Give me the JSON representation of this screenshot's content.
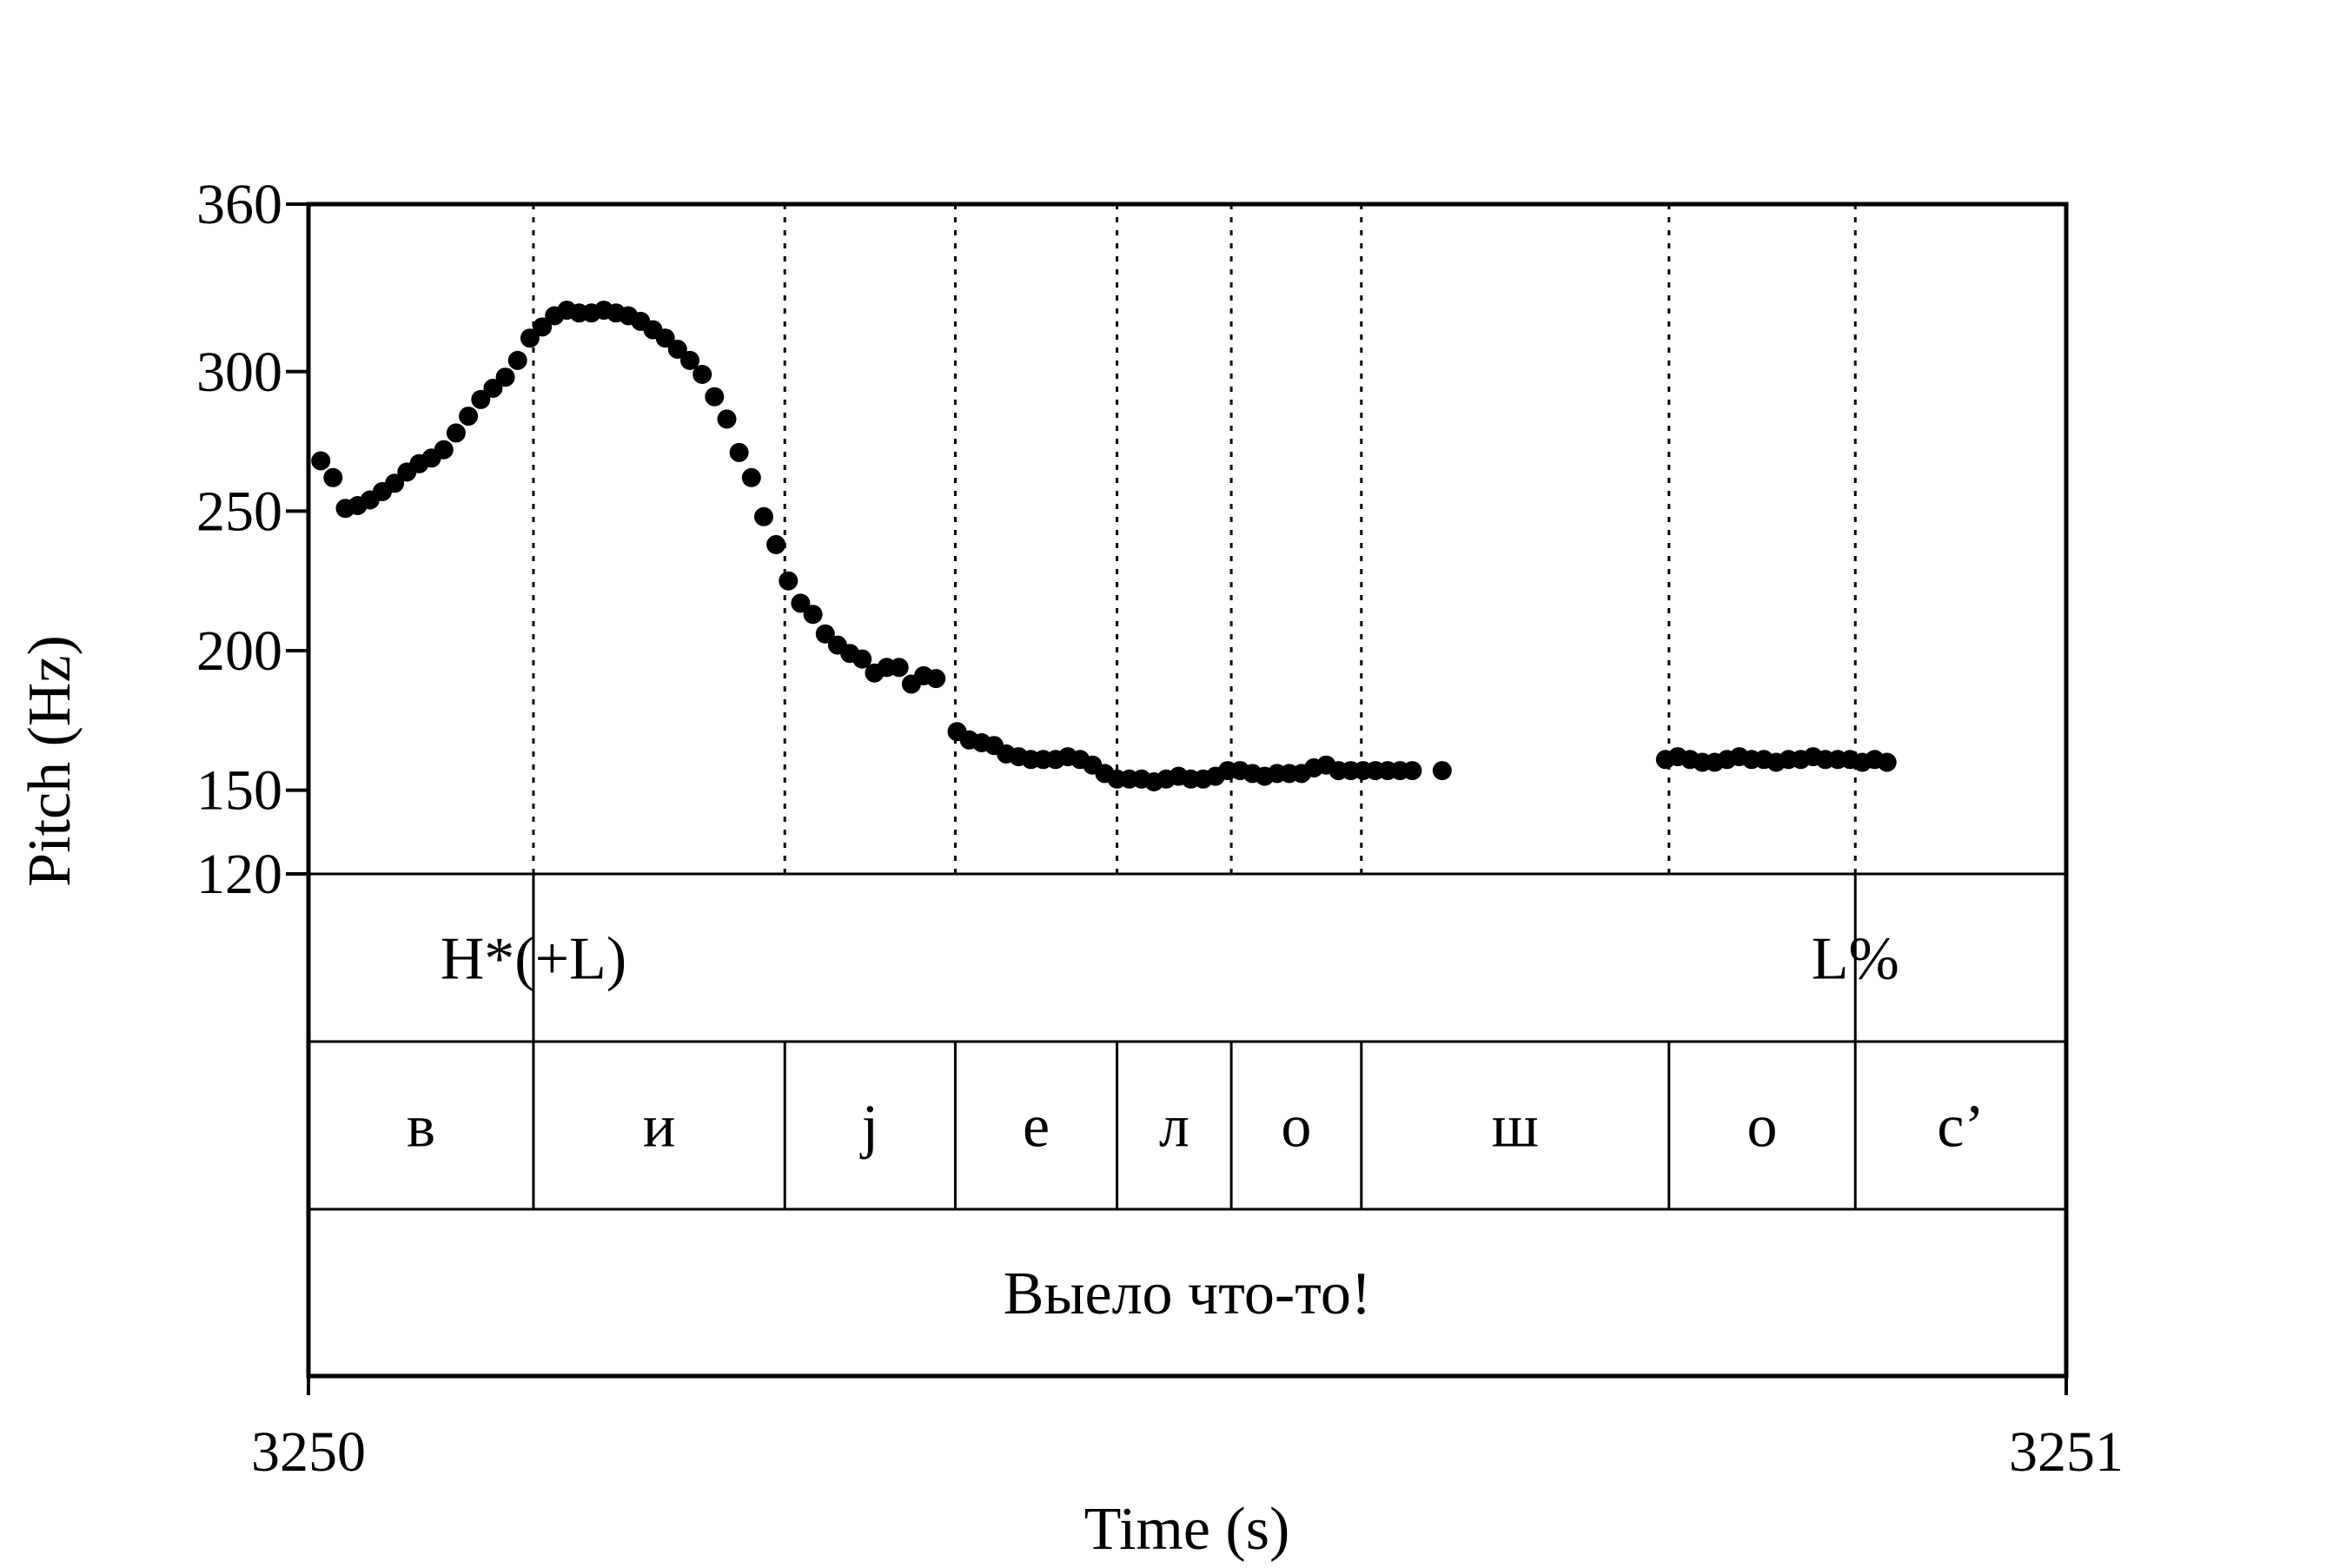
{
  "chart_data": {
    "type": "scatter",
    "xlabel": "Time (s)",
    "ylabel": "Pitch (Hz)",
    "xlim": [
      3250,
      3251
    ],
    "ylim": [
      120,
      360
    ],
    "x_ticks": [
      "3250",
      "3251"
    ],
    "y_ticks": [
      "120",
      "150",
      "200",
      "250",
      "300",
      "360"
    ],
    "grid": false,
    "series": [
      {
        "points": [
          [
            3250.007,
            268
          ],
          [
            3250.014,
            262
          ],
          [
            3250.021,
            251
          ],
          [
            3250.028,
            252
          ],
          [
            3250.035,
            254
          ],
          [
            3250.042,
            257
          ],
          [
            3250.049,
            260
          ],
          [
            3250.056,
            264
          ],
          [
            3250.063,
            267
          ],
          [
            3250.07,
            269
          ],
          [
            3250.077,
            272
          ],
          [
            3250.084,
            278
          ],
          [
            3250.091,
            284
          ],
          [
            3250.098,
            290
          ],
          [
            3250.105,
            294
          ],
          [
            3250.112,
            298
          ],
          [
            3250.119,
            304
          ],
          [
            3250.126,
            312
          ],
          [
            3250.133,
            316
          ],
          [
            3250.14,
            320
          ],
          [
            3250.147,
            322
          ],
          [
            3250.154,
            321
          ],
          [
            3250.161,
            321
          ],
          [
            3250.168,
            322
          ],
          [
            3250.175,
            321
          ],
          [
            3250.182,
            320
          ],
          [
            3250.189,
            318
          ],
          [
            3250.196,
            315
          ],
          [
            3250.203,
            312
          ],
          [
            3250.21,
            308
          ],
          [
            3250.217,
            304
          ],
          [
            3250.224,
            299
          ],
          [
            3250.231,
            291
          ],
          [
            3250.238,
            283
          ],
          [
            3250.245,
            271
          ],
          [
            3250.252,
            262
          ],
          [
            3250.259,
            248
          ],
          [
            3250.266,
            238
          ],
          [
            3250.273,
            225
          ],
          [
            3250.28,
            217
          ],
          [
            3250.287,
            213
          ],
          [
            3250.294,
            206
          ],
          [
            3250.301,
            202
          ],
          [
            3250.308,
            199
          ],
          [
            3250.315,
            197
          ],
          [
            3250.322,
            192
          ],
          [
            3250.329,
            194
          ],
          [
            3250.336,
            194
          ],
          [
            3250.343,
            188
          ],
          [
            3250.35,
            191
          ],
          [
            3250.357,
            190
          ],
          [
            3250.369,
            171
          ],
          [
            3250.376,
            168
          ],
          [
            3250.383,
            167
          ],
          [
            3250.39,
            166
          ],
          [
            3250.397,
            163
          ],
          [
            3250.404,
            162
          ],
          [
            3250.411,
            161
          ],
          [
            3250.418,
            161
          ],
          [
            3250.425,
            161
          ],
          [
            3250.432,
            162
          ],
          [
            3250.439,
            161
          ],
          [
            3250.446,
            159
          ],
          [
            3250.453,
            156
          ],
          [
            3250.46,
            154
          ],
          [
            3250.467,
            154
          ],
          [
            3250.474,
            154
          ],
          [
            3250.481,
            153
          ],
          [
            3250.488,
            154
          ],
          [
            3250.495,
            155
          ],
          [
            3250.502,
            154
          ],
          [
            3250.509,
            154
          ],
          [
            3250.516,
            155
          ],
          [
            3250.523,
            157
          ],
          [
            3250.53,
            157
          ],
          [
            3250.537,
            156
          ],
          [
            3250.544,
            155
          ],
          [
            3250.551,
            156
          ],
          [
            3250.558,
            156
          ],
          [
            3250.565,
            156
          ],
          [
            3250.572,
            158
          ],
          [
            3250.579,
            159
          ],
          [
            3250.586,
            157
          ],
          [
            3250.593,
            157
          ],
          [
            3250.6,
            157
          ],
          [
            3250.607,
            157
          ],
          [
            3250.614,
            157
          ],
          [
            3250.621,
            157
          ],
          [
            3250.628,
            157
          ],
          [
            3250.645,
            157
          ],
          [
            3250.772,
            161
          ],
          [
            3250.779,
            162
          ],
          [
            3250.786,
            161
          ],
          [
            3250.793,
            160
          ],
          [
            3250.8,
            160
          ],
          [
            3250.807,
            161
          ],
          [
            3250.814,
            162
          ],
          [
            3250.821,
            161
          ],
          [
            3250.828,
            161
          ],
          [
            3250.835,
            160
          ],
          [
            3250.842,
            161
          ],
          [
            3250.849,
            161
          ],
          [
            3250.856,
            162
          ],
          [
            3250.863,
            161
          ],
          [
            3250.87,
            161
          ],
          [
            3250.877,
            161
          ],
          [
            3250.884,
            160
          ],
          [
            3250.891,
            161
          ],
          [
            3250.898,
            160
          ]
        ]
      }
    ],
    "boundaries": [
      3250.128,
      3250.271,
      3250.368,
      3250.46,
      3250.525,
      3250.599,
      3250.774,
      3250.88
    ]
  },
  "tiers": {
    "tones": [
      {
        "label": "H*(+L)",
        "time": 3250.128
      },
      {
        "label": "L%",
        "time": 3250.88
      }
    ],
    "segments": [
      {
        "label": "в",
        "start": 3250.0,
        "end": 3250.128
      },
      {
        "label": "и",
        "start": 3250.128,
        "end": 3250.271
      },
      {
        "label": "j",
        "start": 3250.271,
        "end": 3250.368
      },
      {
        "label": "е",
        "start": 3250.368,
        "end": 3250.46
      },
      {
        "label": "л",
        "start": 3250.46,
        "end": 3250.525
      },
      {
        "label": "о",
        "start": 3250.525,
        "end": 3250.599
      },
      {
        "label": "ш",
        "start": 3250.599,
        "end": 3250.774
      },
      {
        "label": "о",
        "start": 3250.774,
        "end": 3250.88
      },
      {
        "label": "с’",
        "start": 3250.88,
        "end": 3251.0
      }
    ],
    "phrase": "Выело что-то!"
  }
}
